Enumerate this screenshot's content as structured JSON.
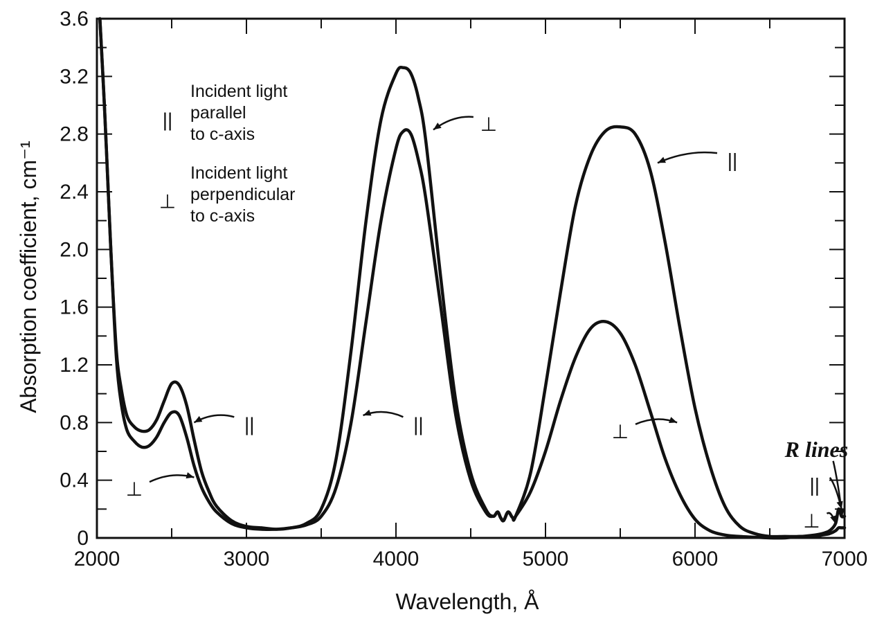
{
  "chart_data": {
    "type": "line",
    "title": "",
    "xlabel": "Wavelength, Å",
    "ylabel": "Absorption coefficient, cm⁻¹",
    "xlim": [
      2000,
      7000
    ],
    "ylim": [
      0,
      3.6
    ],
    "x_ticks": [
      "2000",
      "3000",
      "4000",
      "5000",
      "6000",
      "7000"
    ],
    "y_ticks": [
      "0",
      "0.4",
      "0.8",
      "1.2",
      "1.6",
      "2.0",
      "2.4",
      "2.8",
      "3.2",
      "3.6"
    ],
    "grid": false,
    "legend": {
      "position": "top-left",
      "entries": [
        {
          "symbol": "||",
          "lines": [
            "Incident light",
            "parallel",
            "to c-axis"
          ]
        },
        {
          "symbol": "⊥",
          "lines": [
            "Incident light",
            "perpendicular",
            "to c-axis"
          ]
        }
      ]
    },
    "series": [
      {
        "symbol": "||",
        "x": [
          2020,
          2050,
          2080,
          2100,
          2130,
          2160,
          2200,
          2250,
          2300,
          2350,
          2400,
          2450,
          2500,
          2550,
          2600,
          2650,
          2700,
          2750,
          2800,
          2900,
          3000,
          3100,
          3200,
          3300,
          3400,
          3500,
          3600,
          3700,
          3800,
          3900,
          4000,
          4050,
          4100,
          4150,
          4200,
          4300,
          4400,
          4500,
          4600,
          4650,
          4680,
          4700,
          4720,
          4750,
          4780,
          4800,
          4900,
          5000,
          5100,
          5200,
          5300,
          5400,
          5500,
          5600,
          5700,
          5800,
          5900,
          6000,
          6100,
          6200,
          6300,
          6400,
          6500,
          6600,
          6700,
          6800,
          6850,
          6900,
          6940,
          6960,
          6980,
          7000
        ],
        "y": [
          3.6,
          3.0,
          2.3,
          1.85,
          1.3,
          1.05,
          0.85,
          0.77,
          0.74,
          0.75,
          0.82,
          0.95,
          1.07,
          1.06,
          0.92,
          0.68,
          0.46,
          0.32,
          0.22,
          0.12,
          0.08,
          0.07,
          0.06,
          0.07,
          0.1,
          0.2,
          0.55,
          1.3,
          2.2,
          2.9,
          3.22,
          3.26,
          3.22,
          3.05,
          2.75,
          1.8,
          0.95,
          0.45,
          0.2,
          0.15,
          0.18,
          0.14,
          0.12,
          0.18,
          0.14,
          0.15,
          0.45,
          1.05,
          1.7,
          2.3,
          2.65,
          2.82,
          2.85,
          2.8,
          2.55,
          2.05,
          1.45,
          0.9,
          0.5,
          0.22,
          0.08,
          0.03,
          0.01,
          0.01,
          0.01,
          0.02,
          0.03,
          0.05,
          0.1,
          0.2,
          0.15,
          0.15
        ]
      },
      {
        "symbol": "⊥",
        "x": [
          2020,
          2050,
          2080,
          2100,
          2130,
          2160,
          2200,
          2250,
          2300,
          2350,
          2400,
          2450,
          2500,
          2550,
          2600,
          2650,
          2700,
          2750,
          2800,
          2900,
          3000,
          3100,
          3200,
          3300,
          3400,
          3500,
          3600,
          3700,
          3800,
          3900,
          4000,
          4050,
          4100,
          4150,
          4200,
          4300,
          4400,
          4500,
          4600,
          4650,
          4680,
          4700,
          4720,
          4750,
          4780,
          4800,
          4900,
          5000,
          5100,
          5200,
          5300,
          5400,
          5500,
          5600,
          5700,
          5800,
          5900,
          6000,
          6100,
          6200,
          6300,
          6400,
          6500,
          6600,
          6700,
          6800,
          6850,
          6900,
          6940,
          6960,
          6980,
          7000
        ],
        "y": [
          3.6,
          3.0,
          2.3,
          1.85,
          1.25,
          0.95,
          0.75,
          0.67,
          0.63,
          0.64,
          0.7,
          0.8,
          0.87,
          0.85,
          0.7,
          0.5,
          0.35,
          0.25,
          0.18,
          0.1,
          0.07,
          0.06,
          0.06,
          0.07,
          0.09,
          0.15,
          0.35,
          0.8,
          1.5,
          2.2,
          2.7,
          2.82,
          2.8,
          2.62,
          2.35,
          1.6,
          0.85,
          0.4,
          0.18,
          0.15,
          0.18,
          0.14,
          0.12,
          0.18,
          0.14,
          0.15,
          0.32,
          0.6,
          0.95,
          1.25,
          1.45,
          1.5,
          1.42,
          1.2,
          0.88,
          0.55,
          0.3,
          0.13,
          0.05,
          0.02,
          0.01,
          0.005,
          0.0,
          0.0,
          0.01,
          0.01,
          0.02,
          0.03,
          0.05,
          0.07,
          0.07,
          0.07
        ]
      }
    ],
    "annotations": [
      {
        "text": "⊥",
        "near_x": 4250,
        "near_y": 2.83,
        "label_x": 4620,
        "label_y": 2.88
      },
      {
        "text": "||",
        "near_x": 5750,
        "near_y": 2.6,
        "label_x": 6250,
        "label_y": 2.63
      },
      {
        "text": "||",
        "near_x": 2650,
        "near_y": 0.8,
        "label_x": 3020,
        "label_y": 0.8
      },
      {
        "text": "⊥",
        "near_x": 2650,
        "near_y": 0.42,
        "label_x": 2250,
        "label_y": 0.35
      },
      {
        "text": "||",
        "near_x": 3780,
        "near_y": 0.85,
        "label_x": 4150,
        "label_y": 0.8
      },
      {
        "text": "⊥",
        "near_x": 5880,
        "near_y": 0.8,
        "label_x": 5500,
        "label_y": 0.75
      },
      {
        "text": "R lines",
        "near_x": 6985,
        "near_y": 0.15,
        "label_x": 6600,
        "label_y": 0.62
      },
      {
        "text": "||",
        "near_x": 6980,
        "near_y": 0.2,
        "label_x": 6800,
        "label_y": 0.38
      },
      {
        "text": "⊥",
        "near_x": 6940,
        "near_y": 0.1,
        "label_x": 6780,
        "label_y": 0.13
      }
    ]
  }
}
